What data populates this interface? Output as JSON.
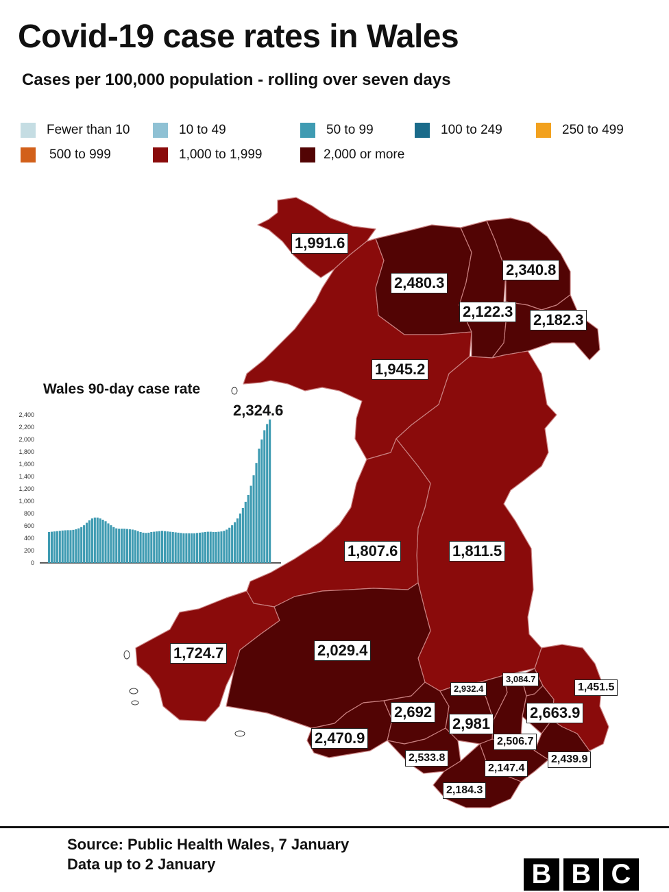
{
  "title": "Covid-19 case rates in Wales",
  "subtitle": "Cases per 100,000 population - rolling over seven days",
  "legend": [
    {
      "label": "Fewer than 10",
      "color": "#c5dde3"
    },
    {
      "label": "10 to 49",
      "color": "#8fc1d4"
    },
    {
      "label": "50 to 99",
      "color": "#3f9bb2"
    },
    {
      "label": "100 to 249",
      "color": "#1a6b8a"
    },
    {
      "label": "250 to 499",
      "color": "#f2a11e"
    },
    {
      "label": "500 to 999",
      "color": "#d2601a"
    },
    {
      "label": "1,000 to 1,999",
      "color": "#8a0b0b"
    },
    {
      "label": "2,000 or more",
      "color": "#520404"
    }
  ],
  "regions": [
    {
      "id": "anglesey",
      "label": "1,991.6",
      "band": "1,000 to 1,999"
    },
    {
      "id": "conwy",
      "label": "2,480.3",
      "band": "2,000 or more"
    },
    {
      "id": "flintshire",
      "label": "2,340.8",
      "band": "2,000 or more"
    },
    {
      "id": "denbighshire",
      "label": "2,122.3",
      "band": "2,000 or more"
    },
    {
      "id": "wrexham",
      "label": "2,182.3",
      "band": "2,000 or more"
    },
    {
      "id": "gwynedd",
      "label": "1,945.2",
      "band": "1,000 to 1,999"
    },
    {
      "id": "ceredigion",
      "label": "1,807.6",
      "band": "1,000 to 1,999"
    },
    {
      "id": "powys",
      "label": "1,811.5",
      "band": "1,000 to 1,999"
    },
    {
      "id": "pembrokeshire",
      "label": "1,724.7",
      "band": "1,000 to 1,999"
    },
    {
      "id": "carmarthenshire",
      "label": "2,029.4",
      "band": "2,000 or more"
    },
    {
      "id": "swansea",
      "label": "2,470.9",
      "band": "2,000 or more"
    },
    {
      "id": "neath-port-talbot",
      "label": "2,692",
      "band": "2,000 or more"
    },
    {
      "id": "merthyr-tydfil",
      "label": "2,932.4",
      "band": "2,000 or more"
    },
    {
      "id": "blaenau-gwent",
      "label": "3,084.7",
      "band": "2,000 or more"
    },
    {
      "id": "monmouthshire",
      "label": "1,451.5",
      "band": "1,000 to 1,999"
    },
    {
      "id": "rhondda-cynon-taf",
      "label": "2,981",
      "band": "2,000 or more"
    },
    {
      "id": "torfaen",
      "label": "2,663.9",
      "band": "2,000 or more"
    },
    {
      "id": "caerphilly",
      "label": "2,506.7",
      "band": "2,000 or more"
    },
    {
      "id": "newport",
      "label": "2,439.9",
      "band": "2,000 or more"
    },
    {
      "id": "bridgend",
      "label": "2,533.8",
      "band": "2,000 or more"
    },
    {
      "id": "cardiff",
      "label": "2,147.4",
      "band": "2,000 or more"
    },
    {
      "id": "vale-of-glamorgan",
      "label": "2,184.3",
      "band": "2,000 or more"
    }
  ],
  "inset": {
    "title": "Wales 90-day case rate",
    "peak_label": "2,324.6"
  },
  "chart_data": {
    "type": "bar",
    "title": "Wales 90-day case rate",
    "ylim": [
      0,
      2400
    ],
    "yticks": [
      "0",
      "200",
      "400",
      "600",
      "800",
      "1,000",
      "1,200",
      "1,400",
      "1,600",
      "1,800",
      "2,000",
      "2,200",
      "2,400"
    ],
    "bar_color": "#3f9bb2",
    "values": [
      500,
      505,
      510,
      515,
      520,
      525,
      528,
      530,
      530,
      535,
      545,
      560,
      580,
      610,
      650,
      690,
      720,
      735,
      735,
      720,
      700,
      675,
      640,
      610,
      580,
      560,
      555,
      555,
      555,
      550,
      545,
      540,
      530,
      515,
      500,
      490,
      485,
      490,
      500,
      505,
      510,
      515,
      520,
      515,
      510,
      505,
      500,
      495,
      490,
      485,
      480,
      480,
      480,
      480,
      480,
      485,
      490,
      495,
      500,
      505,
      505,
      500,
      500,
      505,
      510,
      520,
      540,
      570,
      610,
      660,
      720,
      800,
      890,
      990,
      1100,
      1250,
      1420,
      1620,
      1850,
      2000,
      2150,
      2250,
      2324.6
    ]
  },
  "footer": {
    "source": "Source: Public Health Wales, 7 January",
    "data_note": "Data up to 2 January",
    "brand": [
      "B",
      "B",
      "C"
    ]
  }
}
